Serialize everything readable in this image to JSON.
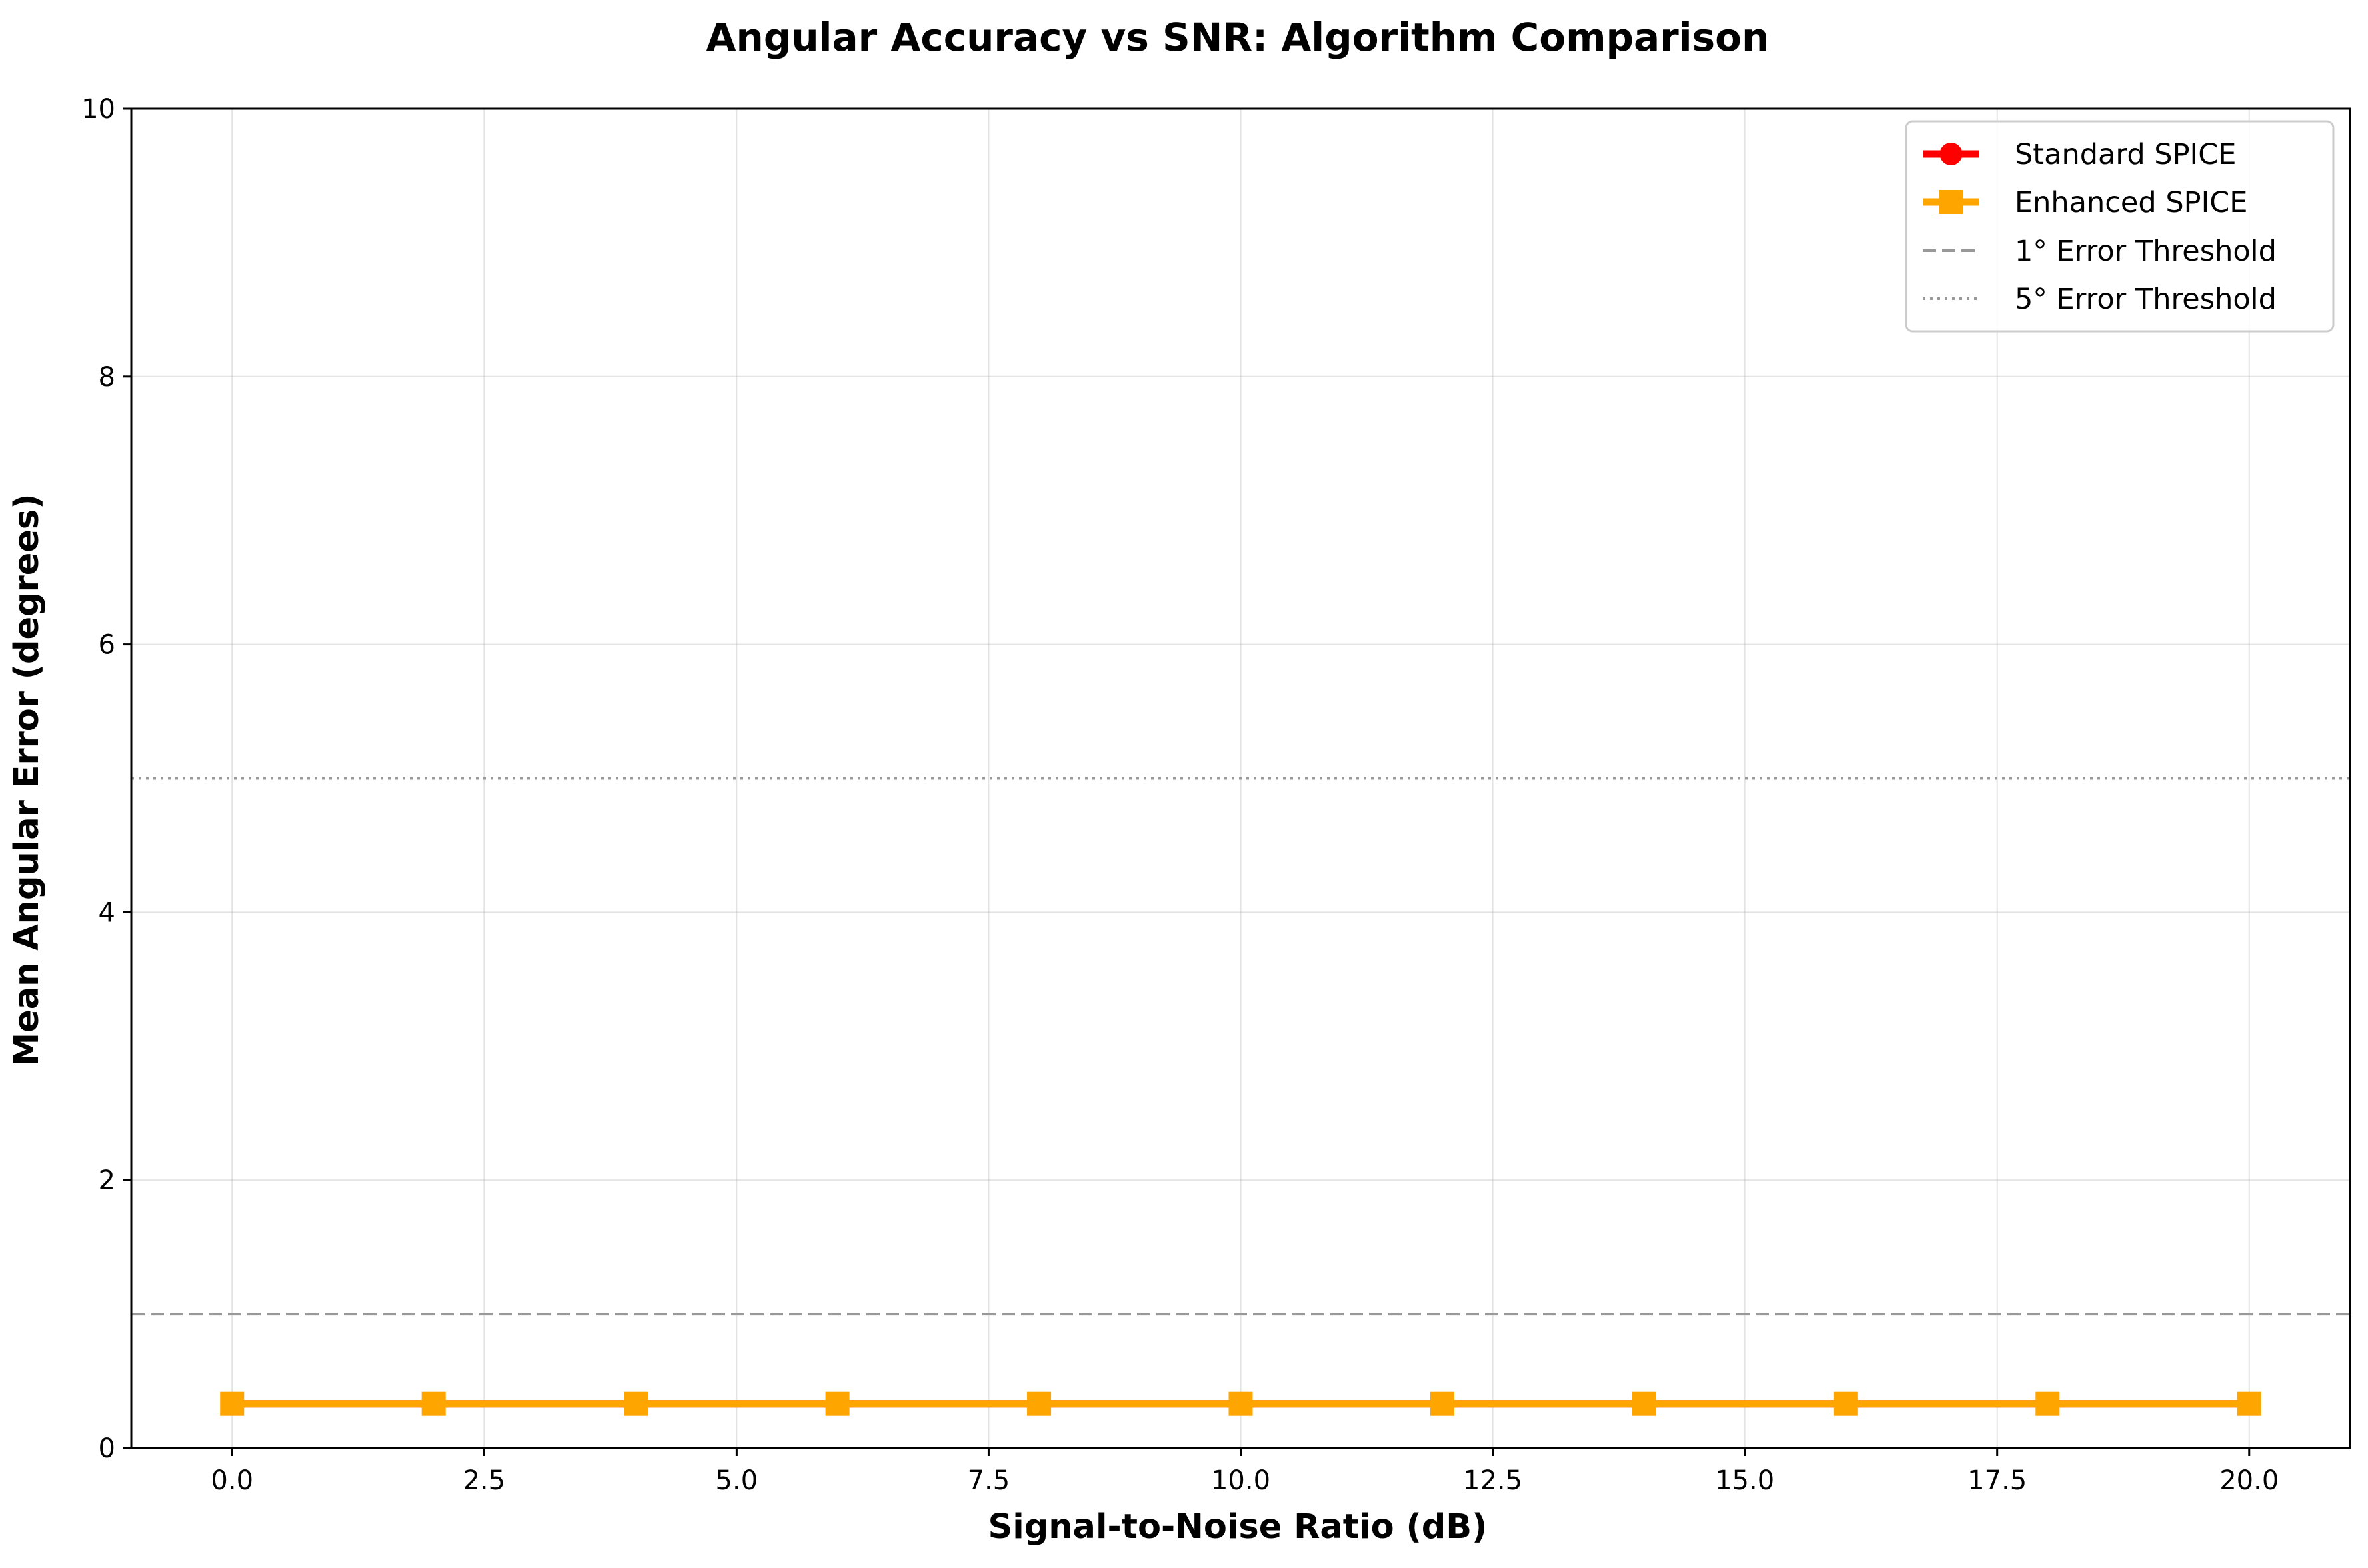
{
  "chart_data": {
    "type": "line",
    "title": "Angular Accuracy vs SNR: Algorithm Comparison",
    "xlabel": "Signal-to-Noise Ratio (dB)",
    "ylabel": "Mean Angular Error (degrees)",
    "xlim": [
      -1,
      21
    ],
    "ylim": [
      0,
      10
    ],
    "xticks": [
      0.0,
      2.5,
      5.0,
      7.5,
      10.0,
      12.5,
      15.0,
      17.5,
      20.0
    ],
    "xtick_labels": [
      "0.0",
      "2.5",
      "5.0",
      "7.5",
      "10.0",
      "12.5",
      "15.0",
      "17.5",
      "20.0"
    ],
    "yticks": [
      0,
      2,
      4,
      6,
      8,
      10
    ],
    "ytick_labels": [
      "0",
      "2",
      "4",
      "6",
      "8",
      "10"
    ],
    "grid": true,
    "legend_position": "top-right",
    "x": [
      0,
      2,
      4,
      6,
      8,
      10,
      12,
      14,
      16,
      18,
      20
    ],
    "series": [
      {
        "name": "Standard SPICE",
        "marker": "circle",
        "color": "#ff0000",
        "values": [
          0.33,
          0.33,
          0.33,
          0.33,
          0.33,
          0.33,
          0.33,
          0.33,
          0.33,
          0.33,
          0.33
        ]
      },
      {
        "name": "Enhanced SPICE",
        "marker": "square",
        "color": "#ffa500",
        "values": [
          0.33,
          0.33,
          0.33,
          0.33,
          0.33,
          0.33,
          0.33,
          0.33,
          0.33,
          0.33,
          0.33
        ]
      }
    ],
    "reference_lines": [
      {
        "name": "1° Error Threshold",
        "y": 1,
        "style": "dashed",
        "color": "#999999"
      },
      {
        "name": "5° Error Threshold",
        "y": 5,
        "style": "dotted",
        "color": "#999999"
      }
    ]
  }
}
